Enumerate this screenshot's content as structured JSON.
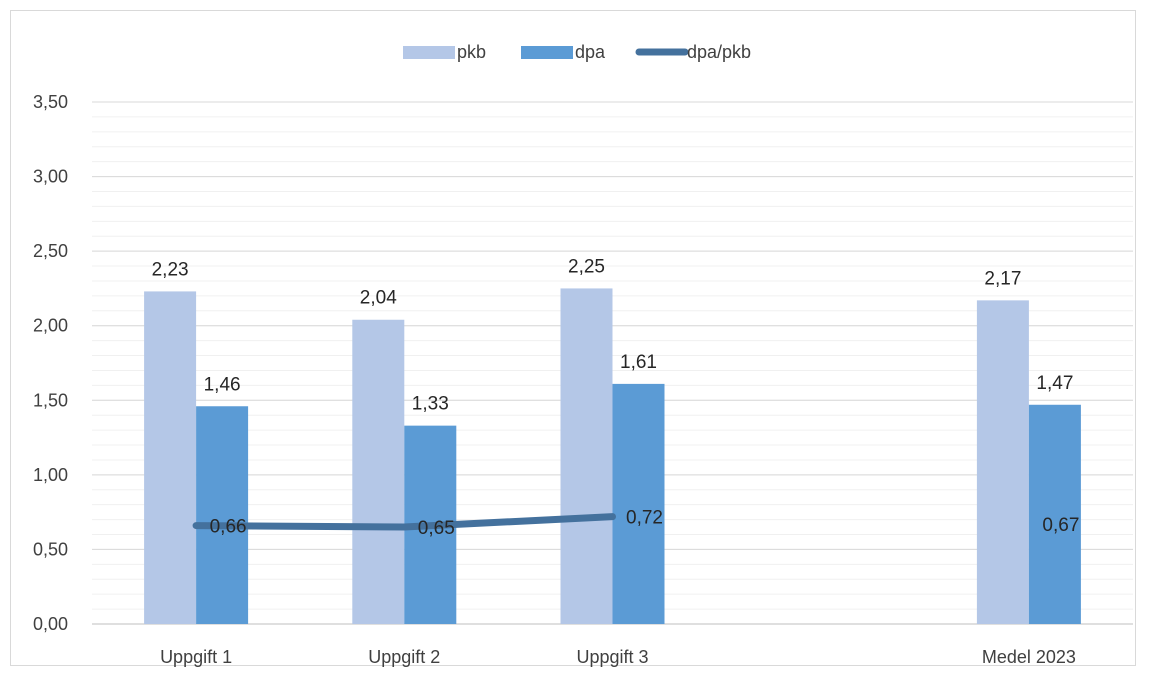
{
  "chart_data": {
    "type": "bar",
    "title": "",
    "xlabel": "",
    "ylabel": "",
    "ylim": [
      0,
      3.5
    ],
    "ytick_step": 0.5,
    "ytick_labels": [
      "0,00",
      "0,50",
      "1,00",
      "1,50",
      "2,00",
      "2,50",
      "3,00",
      "3,50"
    ],
    "grid": true,
    "legend_position": "top",
    "categories": [
      "Uppgift 1",
      "Uppgift 2",
      "Uppgift 3",
      "",
      "Medel 2023"
    ],
    "series": [
      {
        "name": "pkb",
        "kind": "bar",
        "color": "#b4c7e7",
        "values": [
          2.23,
          2.04,
          2.25,
          null,
          2.17
        ],
        "labels": [
          "2,23",
          "2,04",
          "2,25",
          "",
          "2,17"
        ]
      },
      {
        "name": "dpa",
        "kind": "bar",
        "color": "#5b9bd5",
        "values": [
          1.46,
          1.33,
          1.61,
          null,
          1.47
        ],
        "labels": [
          "1,46",
          "1,33",
          "1,61",
          "",
          "1,47"
        ]
      },
      {
        "name": "dpa/pkb",
        "kind": "line",
        "color": "#44719d",
        "values": [
          0.66,
          0.65,
          0.72,
          null,
          0.67
        ],
        "labels": [
          "0,66",
          "0,65",
          "0,72",
          "",
          "0,67"
        ]
      }
    ]
  }
}
